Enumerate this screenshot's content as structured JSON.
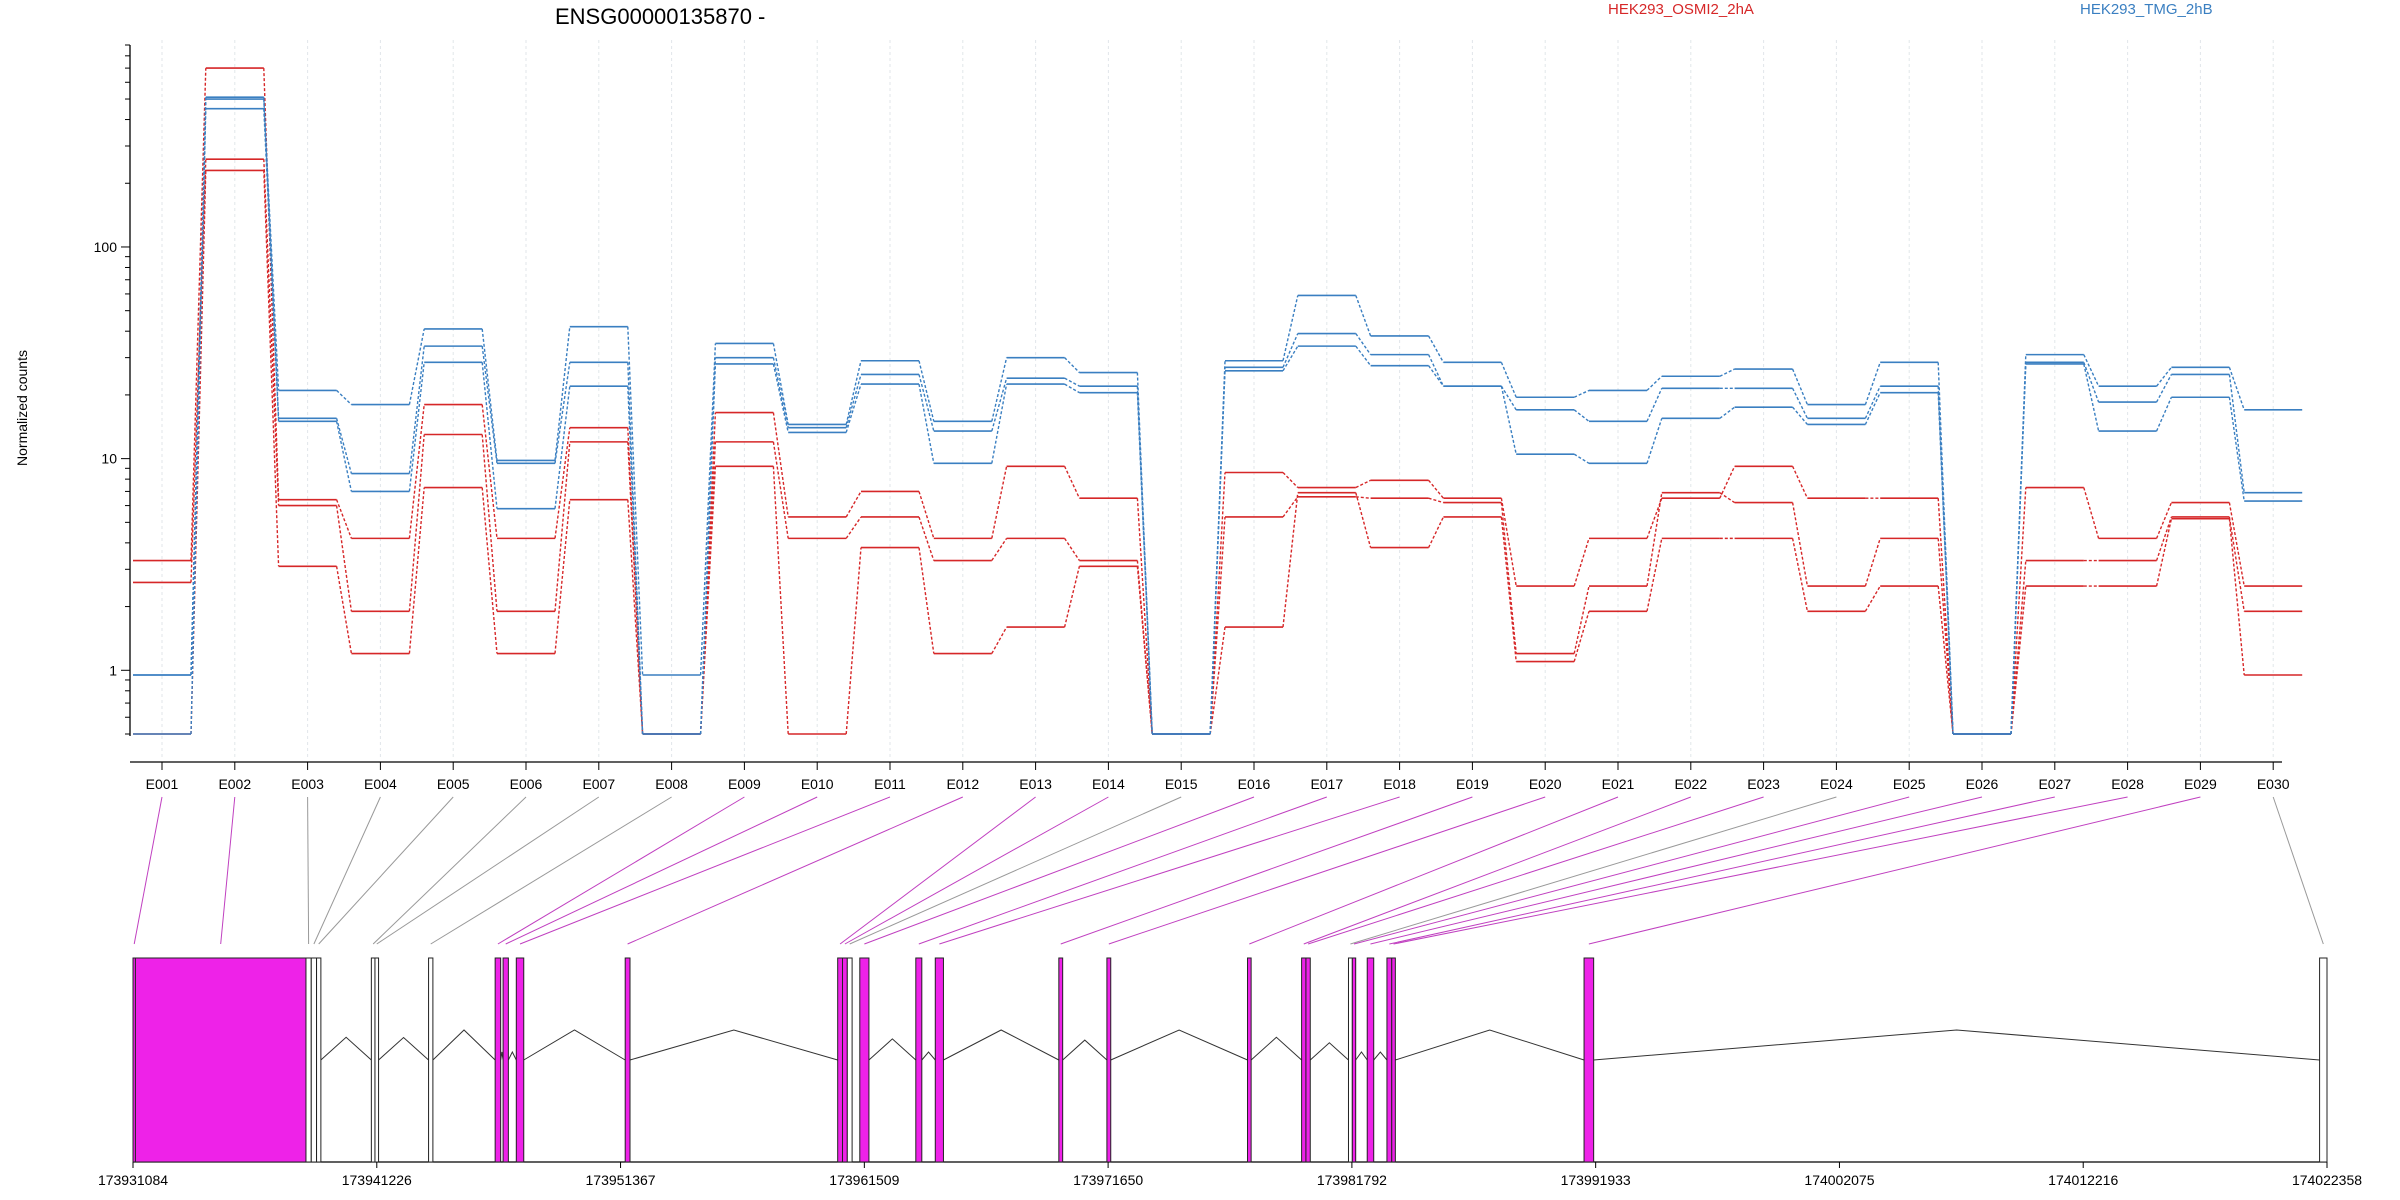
{
  "chart_data": {
    "type": "line",
    "title": "ENSG00000135870 -",
    "ylabel": "Normalized counts",
    "yscale": "log",
    "ylim": [
      0.5,
      900
    ],
    "ytick_labels": [
      "1",
      "10",
      "100"
    ],
    "ytick_values": [
      1,
      10,
      100
    ],
    "legend": [
      {
        "name": "HEK293_OSMI2_2hA",
        "color": "#d62728"
      },
      {
        "name": "HEK293_TMG_2hB",
        "color": "#3a7fc1"
      }
    ],
    "legend_placement": "top-right",
    "categories": [
      "E001",
      "E002",
      "E003",
      "E004",
      "E005",
      "E006",
      "E007",
      "E008",
      "E009",
      "E010",
      "E011",
      "E012",
      "E013",
      "E014",
      "E015",
      "E016",
      "E017",
      "E018",
      "E019",
      "E020",
      "E021",
      "E022",
      "E023",
      "E024",
      "E025",
      "E026",
      "E027",
      "E028",
      "E029",
      "E030"
    ],
    "series": [
      {
        "group": "HEK293_OSMI2_2hA",
        "color": "#d62728",
        "values": [
          3.3,
          700,
          6.4,
          4.2,
          18,
          4.2,
          14,
          0.5,
          16.5,
          5.3,
          7,
          4.2,
          9.2,
          6.5,
          0.5,
          8.6,
          7.3,
          7.9,
          6.5,
          2.5,
          4.2,
          6.5,
          9.2,
          6.5,
          6.5,
          0.5,
          7.3,
          4.2,
          6.2,
          2.5
        ]
      },
      {
        "group": "HEK293_OSMI2_2hA",
        "color": "#d62728",
        "values": [
          2.6,
          260,
          6.0,
          1.9,
          13,
          1.9,
          12,
          0.5,
          12,
          4.2,
          5.3,
          3.3,
          4.2,
          3.3,
          0.5,
          5.3,
          6.6,
          6.5,
          6.2,
          1.2,
          2.5,
          6.9,
          6.2,
          2.5,
          4.2,
          0.5,
          3.3,
          3.3,
          5.3,
          1.9
        ]
      },
      {
        "group": "HEK293_OSMI2_2hA",
        "color": "#d62728",
        "values": [
          0.5,
          230,
          3.1,
          1.2,
          7.3,
          1.2,
          6.4,
          0.5,
          9.2,
          0.5,
          3.8,
          1.2,
          1.6,
          3.1,
          0.5,
          1.6,
          6.9,
          3.8,
          5.3,
          1.1,
          1.9,
          4.2,
          4.2,
          1.9,
          2.5,
          0.5,
          2.5,
          2.5,
          5.2,
          0.95
        ]
      },
      {
        "group": "HEK293_TMG_2hB",
        "color": "#3a7fc1",
        "values": [
          0.95,
          500,
          21,
          18,
          41,
          9.8,
          42,
          0.95,
          35,
          14.5,
          29,
          15,
          30,
          25.5,
          0.5,
          29,
          59,
          38,
          28.5,
          19.5,
          21,
          24.5,
          26.5,
          18,
          28.5,
          0.5,
          31,
          22,
          27,
          17
        ]
      },
      {
        "group": "HEK293_TMG_2hB",
        "color": "#3a7fc1",
        "values": [
          0.95,
          510,
          15.5,
          8.5,
          34,
          9.5,
          28.5,
          0.5,
          30,
          14,
          25,
          13.5,
          24,
          22,
          0.5,
          27,
          39,
          31,
          22,
          17,
          15,
          21.5,
          21.5,
          15.5,
          22,
          0.5,
          28.5,
          18.5,
          25,
          6.9
        ]
      },
      {
        "group": "HEK293_TMG_2hB",
        "color": "#3a7fc1",
        "values": [
          0.5,
          450,
          15,
          7,
          28.5,
          5.8,
          22,
          0.5,
          28,
          13.3,
          22.5,
          9.5,
          22.5,
          20.5,
          0.5,
          26,
          34,
          27.5,
          22,
          10.5,
          9.5,
          15.5,
          17.5,
          14.5,
          20.5,
          0.5,
          28,
          13.5,
          19.5,
          6.3
        ]
      }
    ],
    "grid": "x-only",
    "gene_model": {
      "coordinate_labels": [
        "173931084",
        "173941226",
        "173951367",
        "173961509",
        "173971650",
        "173981792",
        "173991933",
        "174002075",
        "174012216",
        "174022358"
      ],
      "coordinate_values": [
        173931084,
        173941226,
        173951367,
        173961509,
        173971650,
        173981792,
        173991933,
        174002075,
        174012216,
        174022358
      ],
      "exons": [
        {
          "id": "E001",
          "start": 173931084,
          "end": 173931184,
          "highlighted": true
        },
        {
          "id": "E002",
          "start": 173931184,
          "end": 173938280,
          "highlighted": true
        },
        {
          "id": "E003",
          "start": 173938280,
          "end": 173938500,
          "highlighted": false
        },
        {
          "id": "E004",
          "start": 173938500,
          "end": 173938720,
          "highlighted": false
        },
        {
          "id": "E005",
          "start": 173938720,
          "end": 173938900,
          "highlighted": false
        },
        {
          "id": "E006",
          "start": 173941000,
          "end": 173941150,
          "highlighted": false
        },
        {
          "id": "E007",
          "start": 173941150,
          "end": 173941300,
          "highlighted": false
        },
        {
          "id": "E008",
          "start": 173943380,
          "end": 173943560,
          "highlighted": false
        },
        {
          "id": "E009",
          "start": 173946150,
          "end": 173946380,
          "highlighted": true
        },
        {
          "id": "E010",
          "start": 173946480,
          "end": 173946700,
          "highlighted": true
        },
        {
          "id": "E011",
          "start": 173947030,
          "end": 173947340,
          "highlighted": true
        },
        {
          "id": "E012",
          "start": 173951560,
          "end": 173951760,
          "highlighted": true
        },
        {
          "id": "E013",
          "start": 173960400,
          "end": 173960600,
          "highlighted": true
        },
        {
          "id": "E014",
          "start": 173960600,
          "end": 173960800,
          "highlighted": true
        },
        {
          "id": "E015",
          "start": 173960800,
          "end": 173961000,
          "highlighted": false
        },
        {
          "id": "E016",
          "start": 173961320,
          "end": 173961700,
          "highlighted": true
        },
        {
          "id": "E017",
          "start": 173963650,
          "end": 173963900,
          "highlighted": true
        },
        {
          "id": "E018",
          "start": 173964460,
          "end": 173964800,
          "highlighted": true
        },
        {
          "id": "E019",
          "start": 173969600,
          "end": 173969760,
          "highlighted": true
        },
        {
          "id": "E020",
          "start": 173971600,
          "end": 173971760,
          "highlighted": true
        },
        {
          "id": "E021",
          "start": 173977450,
          "end": 173977600,
          "highlighted": true
        },
        {
          "id": "E022",
          "start": 173979700,
          "end": 173979880,
          "highlighted": true
        },
        {
          "id": "E023",
          "start": 173979880,
          "end": 173980060,
          "highlighted": true
        },
        {
          "id": "E024",
          "start": 173981650,
          "end": 173981810,
          "highlighted": false
        },
        {
          "id": "E025",
          "start": 173981810,
          "end": 173981950,
          "highlighted": true
        },
        {
          "id": "E026",
          "start": 173982430,
          "end": 173982700,
          "highlighted": true
        },
        {
          "id": "E027",
          "start": 173983250,
          "end": 173983450,
          "highlighted": true
        },
        {
          "id": "E028",
          "start": 173983450,
          "end": 173983600,
          "highlighted": true
        },
        {
          "id": "E029",
          "start": 173991450,
          "end": 173991850,
          "highlighted": true
        },
        {
          "id": "E030",
          "start": 174022050,
          "end": 174022358,
          "highlighted": false
        }
      ],
      "introns": [
        [
          173938900,
          173941000
        ],
        [
          173941300,
          173943380
        ],
        [
          173943560,
          173946150
        ],
        [
          173946380,
          173946480
        ],
        [
          173946700,
          173947030
        ],
        [
          173947340,
          173951560
        ],
        [
          173951760,
          173960400
        ],
        [
          173961700,
          173963650
        ],
        [
          173963900,
          173964460
        ],
        [
          173964800,
          173969600
        ],
        [
          173969760,
          173971600
        ],
        [
          173971760,
          173977450
        ],
        [
          173977600,
          173979700
        ],
        [
          173980060,
          173981650
        ],
        [
          173981950,
          173982430
        ],
        [
          173982700,
          173983250
        ],
        [
          173983600,
          173991450
        ],
        [
          173991850,
          174022050
        ]
      ]
    }
  }
}
